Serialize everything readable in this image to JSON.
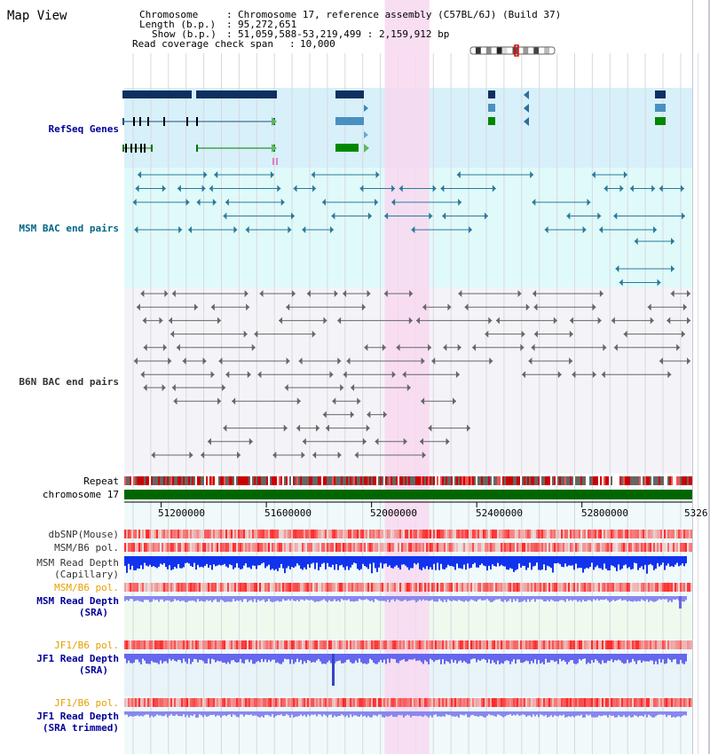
{
  "page": {
    "title": "Map View"
  },
  "info": {
    "chromosome": {
      "label": "Chromosome",
      "value": "Chromosome 17, reference assembly (C57BL/6J) (Build 37)"
    },
    "length": {
      "label": "Length (b.p.)",
      "value": "95,272,651"
    },
    "show": {
      "label": "Show (b.p.)",
      "value": "51,059,588-53,219,499 : 2,159,912 bp"
    },
    "span": {
      "label": "Read coverage check span",
      "value": "10,000"
    }
  },
  "tracks": {
    "refseq": "RefSeq Genes",
    "msm_bac": "MSM BAC end pairs",
    "b6n_bac": "B6N BAC end pairs",
    "repeat": "Repeat",
    "chromosome": "chromosome 17",
    "dbsnp": "dbSNP(Mouse)",
    "msm_pol_1": "MSM/B6 pol.",
    "msm_depth_cap_1": "MSM Read Depth",
    "msm_depth_cap_2": "(Capillary)",
    "msm_pol_2": "MSM/B6 pol.",
    "msm_depth_sra_1": "MSM Read Depth",
    "msm_depth_sra_2": "(SRA)",
    "jf1_pol_1": "JF1/B6 pol.",
    "jf1_depth_sra_1": "JF1 Read Depth",
    "jf1_depth_sra_2": "(SRA)",
    "jf1_pol_2": "JF1/B6 pol.",
    "jf1_depth_trim_1": "JF1 Read Depth",
    "jf1_depth_trim_2": "(SRA trimmed)"
  },
  "axis": {
    "ticks": [
      51200000,
      51600000,
      52000000,
      52400000,
      52800000
    ],
    "end_label": "5326",
    "range": [
      51059588,
      53219499
    ]
  },
  "highlight": {
    "start": 52050000,
    "end": 52220000
  },
  "colors": {
    "refseq_bg": "#d8f0fa",
    "msm_bg": "#e0fafa",
    "b6n_bg": "#f4f4f8",
    "highlight": "#f8d8f0",
    "chrom": "#006600",
    "refseq_label": "#000099",
    "msm_label": "#006688",
    "b6n_label": "#333333",
    "orange_label": "#e6a000",
    "blue_label": "#000099"
  }
}
